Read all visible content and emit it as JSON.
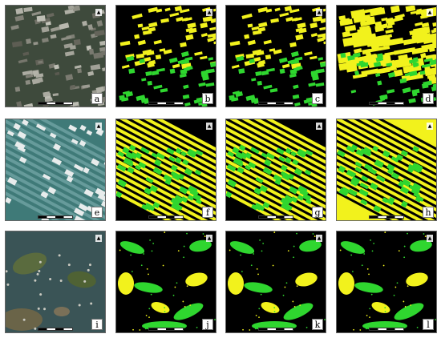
{
  "panels": [
    {
      "letter": "a",
      "kind": "rgb",
      "scene": "row1"
    },
    {
      "letter": "b",
      "kind": "map",
      "scene": "row1"
    },
    {
      "letter": "c",
      "kind": "map",
      "scene": "row1"
    },
    {
      "letter": "d",
      "kind": "map",
      "scene": "row1",
      "noisy": true
    },
    {
      "letter": "e",
      "kind": "rgb",
      "scene": "row2"
    },
    {
      "letter": "f",
      "kind": "map",
      "scene": "row2"
    },
    {
      "letter": "g",
      "kind": "map",
      "scene": "row2"
    },
    {
      "letter": "h",
      "kind": "map",
      "scene": "row2",
      "noisy": true
    },
    {
      "letter": "i",
      "kind": "rgb",
      "scene": "row3"
    },
    {
      "letter": "j",
      "kind": "map",
      "scene": "row3"
    },
    {
      "letter": "k",
      "kind": "map",
      "scene": "row3"
    },
    {
      "letter": "l",
      "kind": "map",
      "scene": "row3"
    }
  ],
  "colors": {
    "background": "#000000",
    "class_yellow": "#f2f21c",
    "class_green": "#2fd62f",
    "rgb_row1": "#3e4a3c",
    "rgb_row2": "#3f7a78",
    "rgb_row3": "#3a5456"
  },
  "north_glyph": "▲"
}
